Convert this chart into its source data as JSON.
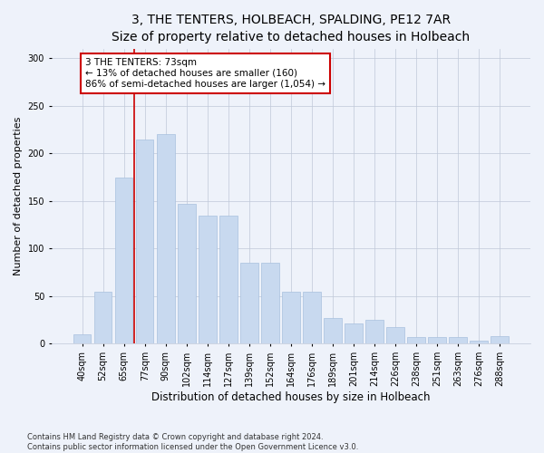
{
  "title": "3, THE TENTERS, HOLBEACH, SPALDING, PE12 7AR",
  "subtitle": "Size of property relative to detached houses in Holbeach",
  "xlabel": "Distribution of detached houses by size in Holbeach",
  "ylabel": "Number of detached properties",
  "categories": [
    "40sqm",
    "52sqm",
    "65sqm",
    "77sqm",
    "90sqm",
    "102sqm",
    "114sqm",
    "127sqm",
    "139sqm",
    "152sqm",
    "164sqm",
    "176sqm",
    "189sqm",
    "201sqm",
    "214sqm",
    "226sqm",
    "238sqm",
    "251sqm",
    "263sqm",
    "276sqm",
    "288sqm"
  ],
  "values": [
    10,
    55,
    175,
    215,
    220,
    147,
    135,
    135,
    85,
    85,
    55,
    55,
    27,
    21,
    25,
    18,
    7,
    7,
    7,
    3,
    8
  ],
  "bar_color": "#c8d9ef",
  "bar_edge_color": "#a8c0de",
  "vline_color": "#cc0000",
  "annotation_text": "3 THE TENTERS: 73sqm\n← 13% of detached houses are smaller (160)\n86% of semi-detached houses are larger (1,054) →",
  "annotation_box_facecolor": "#ffffff",
  "annotation_box_edgecolor": "#cc0000",
  "ylim": [
    0,
    310
  ],
  "yticks": [
    0,
    50,
    100,
    150,
    200,
    250,
    300
  ],
  "footnote": "Contains HM Land Registry data © Crown copyright and database right 2024.\nContains public sector information licensed under the Open Government Licence v3.0.",
  "background_color": "#eef2fa",
  "title_fontsize": 10,
  "subtitle_fontsize": 9,
  "ylabel_fontsize": 8,
  "xlabel_fontsize": 8.5,
  "annotation_fontsize": 7.5,
  "tick_fontsize": 7,
  "footnote_fontsize": 6
}
